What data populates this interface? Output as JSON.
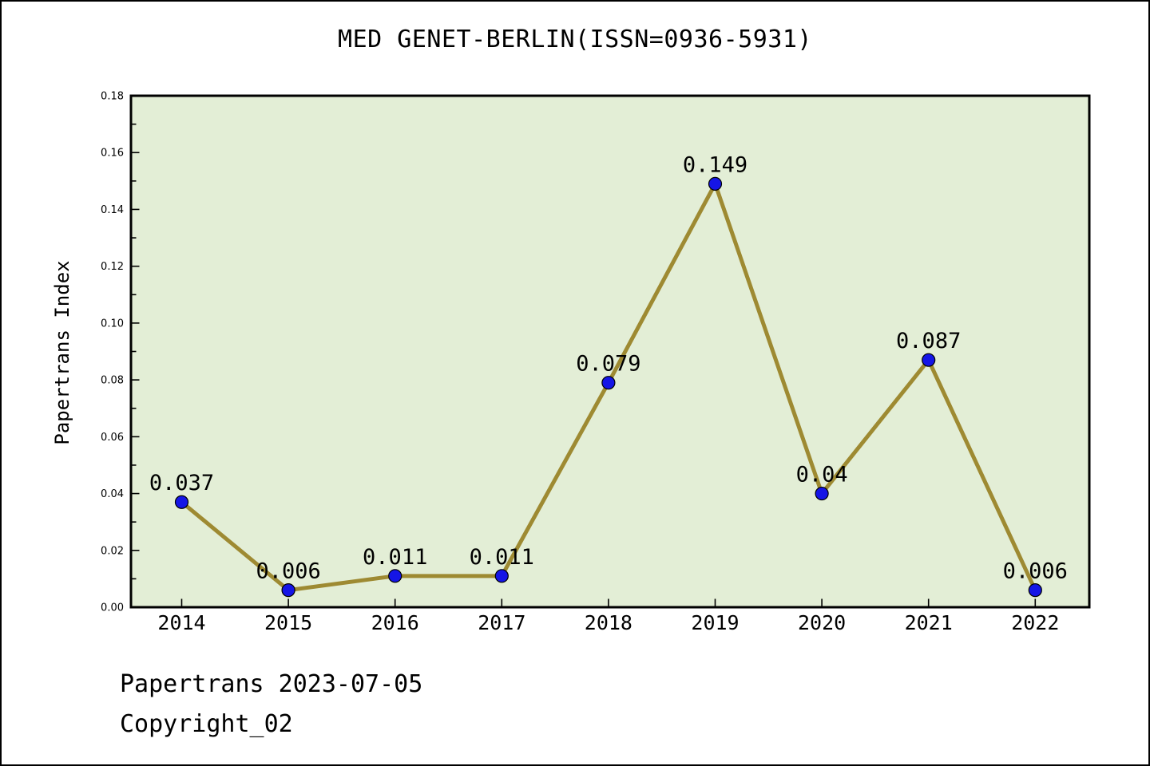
{
  "title": "MED GENET-BERLIN(ISSN=0936-5931)",
  "footer": {
    "line1": "Papertrans 2023-07-05",
    "line2": "Copyright_02"
  },
  "chart_data": {
    "type": "line",
    "title": "MED GENET-BERLIN(ISSN=0936-5931)",
    "categories": [
      "2014",
      "2015",
      "2016",
      "2017",
      "2018",
      "2019",
      "2020",
      "2021",
      "2022"
    ],
    "values": [
      0.037,
      0.006,
      0.011,
      0.011,
      0.079,
      0.149,
      0.04,
      0.087,
      0.006
    ],
    "point_labels": [
      "0.037",
      "0.006",
      "0.011",
      "0.011",
      "0.079",
      "0.149",
      "0.04",
      "0.087",
      "0.006"
    ],
    "xlabel": "",
    "ylabel": "Papertrans Index",
    "ylim": [
      0,
      0.18
    ],
    "ytick_labels": [
      "0.00",
      "0.02",
      "0.04",
      "0.06",
      "0.08",
      "0.10",
      "0.12",
      "0.14",
      "0.16",
      "0.18"
    ],
    "ytick_step": 0.02,
    "minor_ytick_step": 0.01,
    "grid": "off",
    "legend": "none",
    "colors": {
      "line": "#9e8a32",
      "marker_fill": "#1515e6",
      "marker_edge": "#000000",
      "plot_background": "#e3eed6",
      "page_background": "#ffffff",
      "axis": "#000000",
      "text": "#000000"
    }
  }
}
